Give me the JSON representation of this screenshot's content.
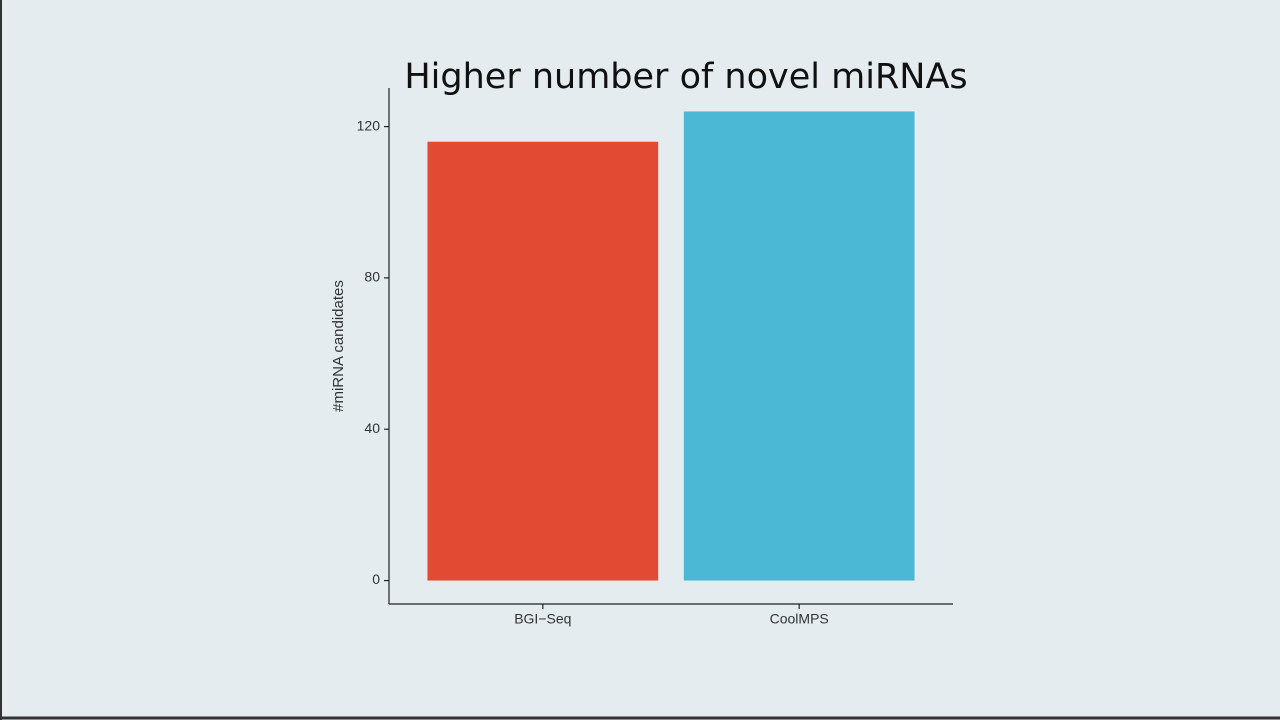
{
  "chart_data": {
    "type": "bar",
    "title": "Higher number of novel miRNAs",
    "y_label": "#miRNA candidates",
    "categories": [
      "BGI−Seq",
      "CoolMPS"
    ],
    "values": [
      116,
      124
    ],
    "colors": [
      "#e34a33",
      "#4bb9d6"
    ],
    "ylim": [
      -6.2,
      130.2
    ],
    "yticks": [
      0,
      40,
      80,
      120
    ],
    "grid": false
  }
}
